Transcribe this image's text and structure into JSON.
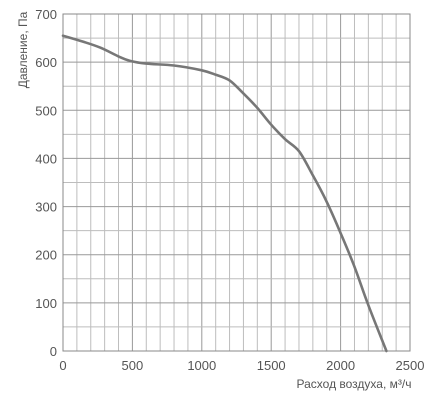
{
  "chart_data": {
    "type": "line",
    "title": "",
    "xlabel": "Расход воздуха, м³/ч",
    "ylabel": "Давление, Па",
    "xlim": [
      0,
      2500
    ],
    "ylim": [
      0,
      700
    ],
    "x_ticks": [
      0,
      500,
      1000,
      1500,
      2000,
      2500
    ],
    "y_ticks": [
      0,
      100,
      200,
      300,
      400,
      500,
      600,
      700
    ],
    "x_minor_step": 100,
    "y_minor_step": 50,
    "grid": true,
    "series": [
      {
        "name": "",
        "color": "#777777",
        "points": [
          [
            0,
            655
          ],
          [
            150,
            642
          ],
          [
            270,
            630
          ],
          [
            400,
            612
          ],
          [
            480,
            603
          ],
          [
            600,
            597
          ],
          [
            800,
            593
          ],
          [
            1000,
            583
          ],
          [
            1100,
            574
          ],
          [
            1200,
            562
          ],
          [
            1300,
            535
          ],
          [
            1400,
            505
          ],
          [
            1500,
            470
          ],
          [
            1600,
            440
          ],
          [
            1700,
            415
          ],
          [
            1800,
            365
          ],
          [
            1900,
            310
          ],
          [
            2000,
            245
          ],
          [
            2100,
            175
          ],
          [
            2200,
            95
          ],
          [
            2330,
            0
          ]
        ]
      }
    ]
  }
}
